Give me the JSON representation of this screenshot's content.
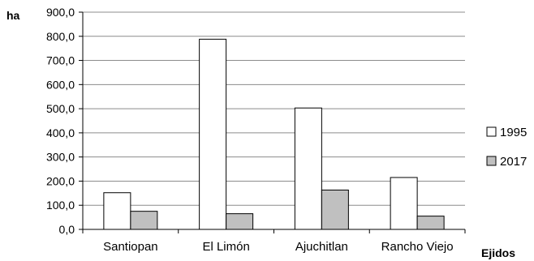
{
  "chart_data": {
    "type": "bar",
    "categories": [
      "Santiopan",
      "El Limón",
      "Ajuchitlan",
      "Rancho Viejo"
    ],
    "series": [
      {
        "name": "1995",
        "values": [
          152,
          788,
          503,
          215
        ],
        "color": "#ffffff"
      },
      {
        "name": "2017",
        "values": [
          75,
          65,
          163,
          55
        ],
        "color": "#c0c0c0"
      }
    ],
    "ylabel": "ha",
    "xlabel": "Ejidos",
    "ylim": [
      0,
      900
    ],
    "yticks": [
      "0,0",
      "100,0",
      "200,0",
      "300,0",
      "400,0",
      "500,0",
      "600,0",
      "700,0",
      "800,0",
      "900,0"
    ],
    "grid": true,
    "legend_position": "right",
    "bar_stroke": "#000000",
    "grid_color": "#8c8c8c"
  }
}
